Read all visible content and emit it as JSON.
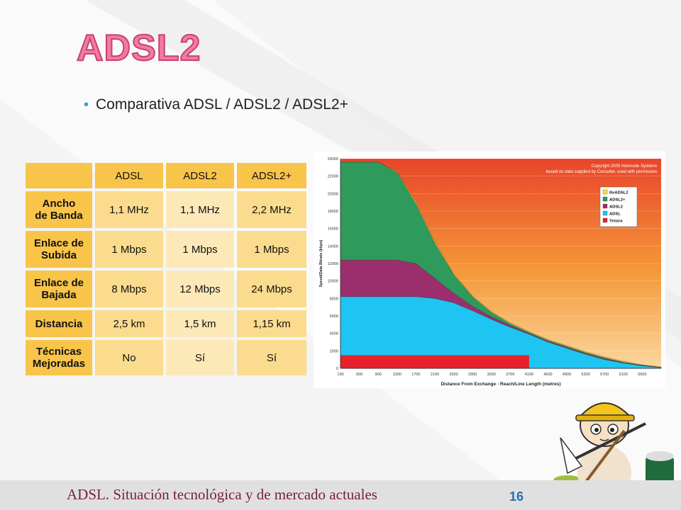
{
  "slide": {
    "title": "ADSL2",
    "bullet": "Comparativa ADSL / ADSL2 / ADSL2+"
  },
  "table": {
    "headers": [
      "",
      "ADSL",
      "ADSL2",
      "ADSL2+"
    ],
    "rows": [
      {
        "label": "Ancho\nde Banda",
        "values": [
          "1,1 MHz",
          "1,1 MHz",
          "2,2 MHz"
        ]
      },
      {
        "label": "Enlace de\nSubida",
        "values": [
          "1 Mbps",
          "1 Mbps",
          "1 Mbps"
        ]
      },
      {
        "label": "Enlace de\nBajada",
        "values": [
          "8 Mbps",
          "12 Mbps",
          "24 Mbps"
        ]
      },
      {
        "label": "Distancia",
        "values": [
          "2,5 km",
          "1,5 km",
          "1,15 km"
        ]
      },
      {
        "label": "Técnicas\nMejoradas",
        "values": [
          "No",
          "Sí",
          "Sí"
        ]
      }
    ]
  },
  "chart_data": {
    "type": "area",
    "copyright": [
      "Copyright 2005 Internode Systems",
      "based on data supplied by Consultel, used with permission"
    ],
    "xlabel": "Distance From Exchange - Reach/Line Length (metres)",
    "ylabel": "Speed/Data Bitrate (kbps)",
    "x_ticks": [
      "100",
      "500",
      "900",
      "1300",
      "1700",
      "2100",
      "2500",
      "2900",
      "3300",
      "3700",
      "4100",
      "4500",
      "4900",
      "5300",
      "5700",
      "6100",
      "6500"
    ],
    "y_ticks": [
      0,
      2000,
      4000,
      6000,
      8000,
      10000,
      12000,
      14000,
      16000,
      18000,
      20000,
      22000,
      24000
    ],
    "ylim": [
      0,
      24000
    ],
    "xlim": [
      100,
      6900
    ],
    "legend_position": "top-right",
    "x": [
      100,
      500,
      900,
      1300,
      1700,
      2100,
      2500,
      2900,
      3300,
      3700,
      4100,
      4500,
      4900,
      5300,
      5700,
      6100,
      6500,
      6900
    ],
    "series": [
      {
        "name": "ReADSL2",
        "color": "#f2e23a",
        "values": [
          23600,
          23600,
          23600,
          22500,
          19000,
          14500,
          10800,
          8300,
          6500,
          5200,
          4200,
          3300,
          2600,
          1900,
          1300,
          800,
          400,
          150
        ]
      },
      {
        "name": "ADSL2+",
        "color": "#2e9a5c",
        "values": [
          23600,
          23600,
          23600,
          22400,
          18800,
          14300,
          10700,
          8200,
          6400,
          5100,
          4100,
          3200,
          2500,
          1800,
          1200,
          700,
          350,
          100
        ]
      },
      {
        "name": "ADSL2",
        "color": "#9b2f6e",
        "values": [
          12400,
          12400,
          12400,
          12400,
          12000,
          10300,
          8600,
          7100,
          5900,
          4900,
          4000,
          3100,
          2400,
          1700,
          1100,
          650,
          300,
          100
        ]
      },
      {
        "name": "ADSL",
        "color": "#1ec4f2",
        "values": [
          8200,
          8200,
          8200,
          8200,
          8200,
          8000,
          7500,
          6600,
          5600,
          4700,
          3900,
          3000,
          2300,
          1600,
          1000,
          600,
          280,
          80
        ]
      },
      {
        "name": "Telstra",
        "color": "#e8202a",
        "values": [
          1500,
          1500,
          1500,
          1500,
          1500,
          1500,
          1500,
          1500,
          1500,
          1500,
          1500,
          0,
          0,
          0,
          0,
          0,
          0,
          0
        ]
      }
    ]
  },
  "footer": {
    "text": "ADSL. Situación tecnológica y de mercado actuales",
    "page": "16"
  },
  "colors": {
    "title_fill": "#f27aa6",
    "bullet_dot": "#2aa0d8",
    "footer_text": "#7a1f3d",
    "page_number": "#2a6fb0"
  }
}
